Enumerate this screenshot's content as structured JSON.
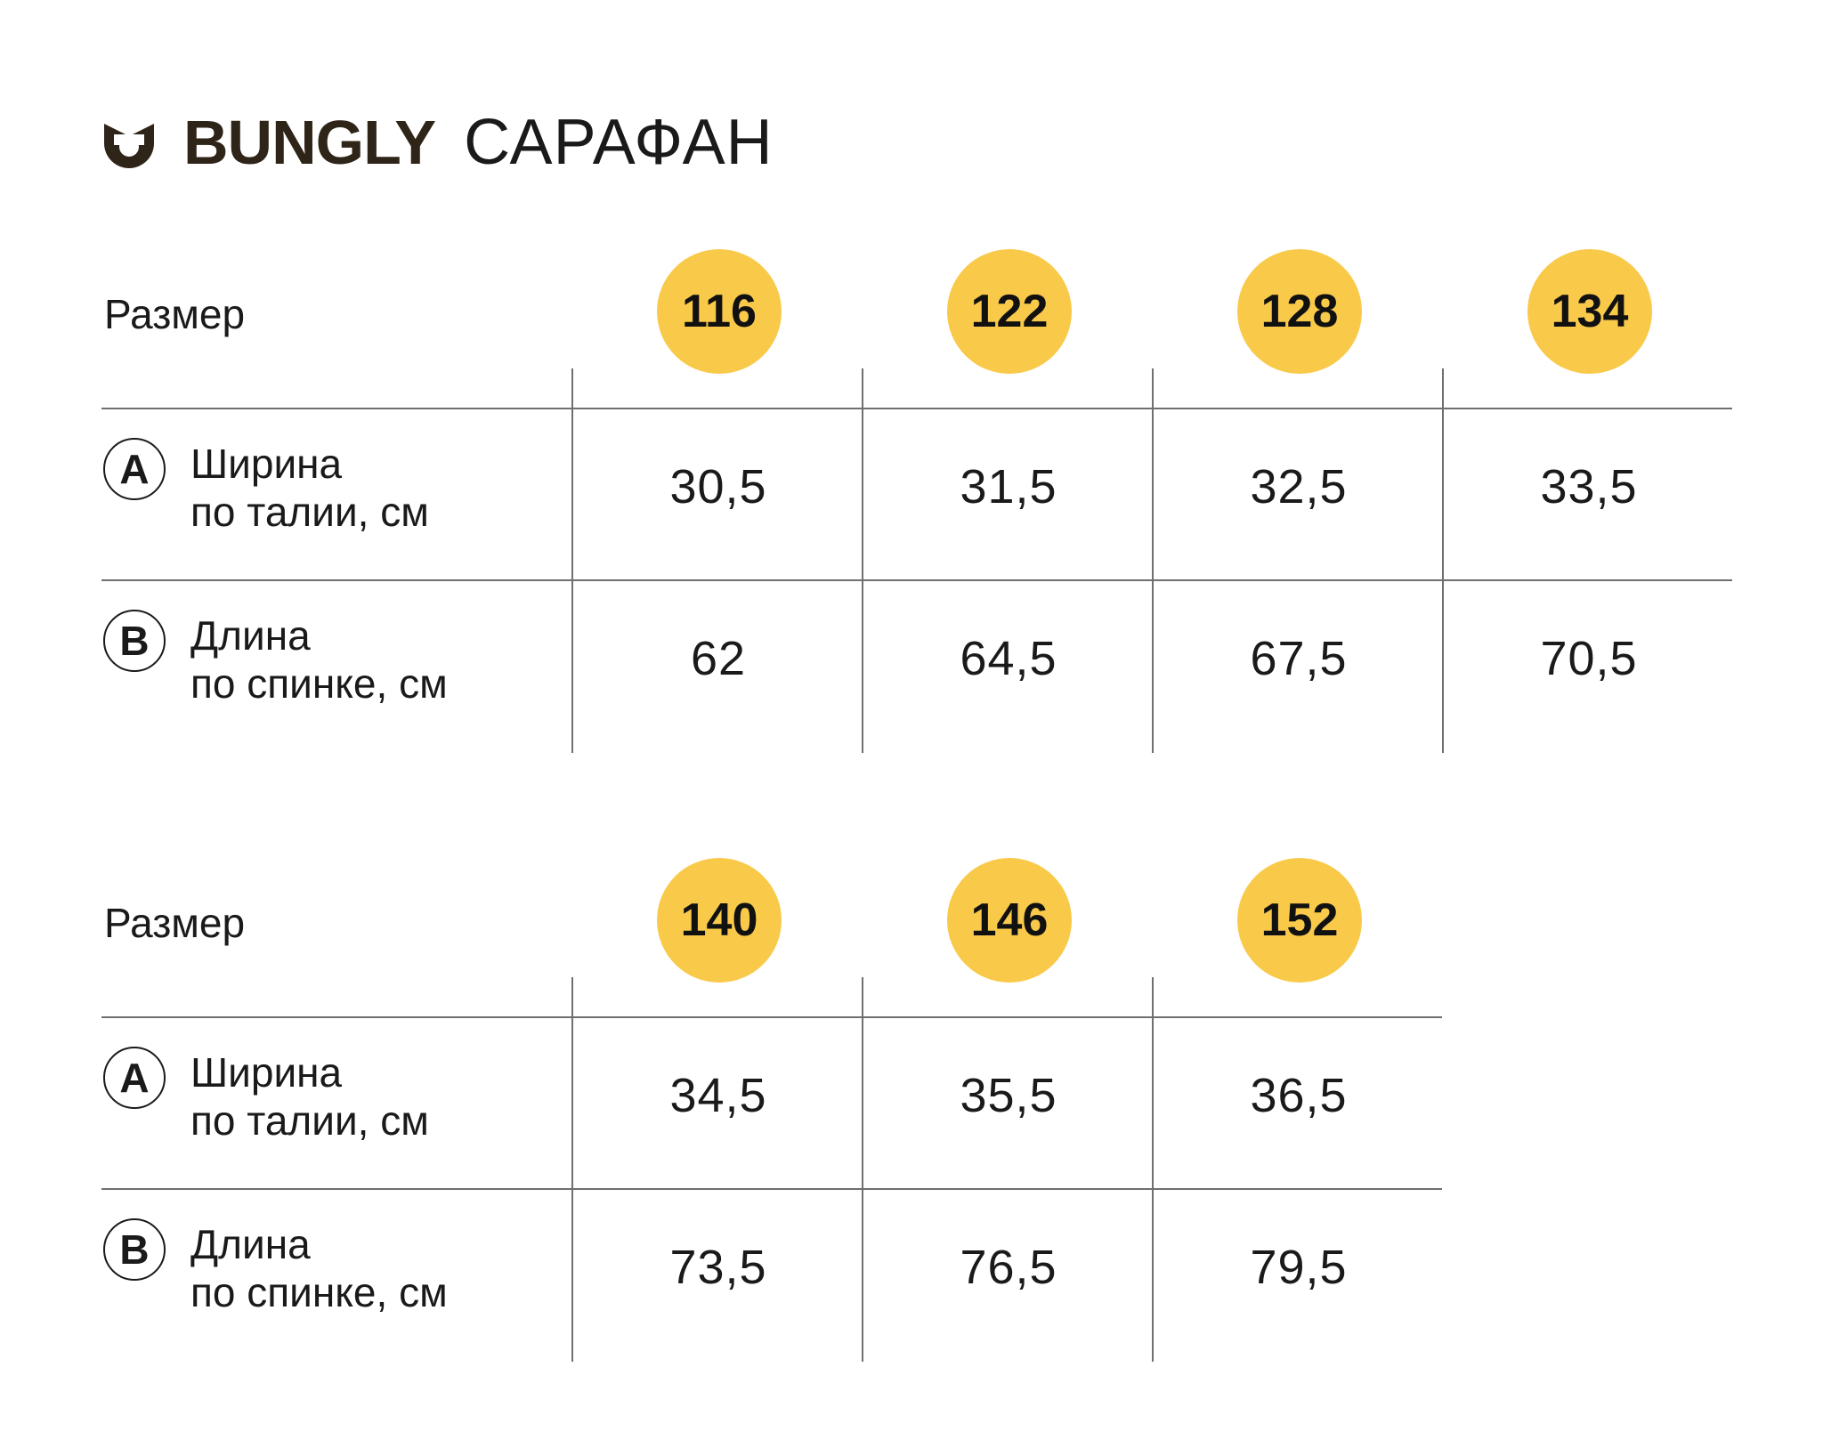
{
  "header": {
    "brand": "BUNGLY",
    "product": "САРАФАН",
    "logo_icon": "smile-cup-icon",
    "brand_color": "#2e2418"
  },
  "colors": {
    "badge": "#f9c94a",
    "rule": "#6f6f6f",
    "text": "#1a1a1a"
  },
  "tables": [
    {
      "size_label": "Размер",
      "sizes": [
        "116",
        "122",
        "128",
        "134"
      ],
      "rows": [
        {
          "marker": "A",
          "label_line1": "Ширина",
          "label_line2": "по талии, см",
          "values": [
            "30,5",
            "31,5",
            "32,5",
            "33,5"
          ]
        },
        {
          "marker": "B",
          "label_line1": "Длина",
          "label_line2": "по спинке, см",
          "values": [
            "62",
            "64,5",
            "67,5",
            "70,5"
          ]
        }
      ]
    },
    {
      "size_label": "Размер",
      "sizes": [
        "140",
        "146",
        "152"
      ],
      "rows": [
        {
          "marker": "A",
          "label_line1": "Ширина",
          "label_line2": "по талии, см",
          "values": [
            "34,5",
            "35,5",
            "36,5"
          ]
        },
        {
          "marker": "B",
          "label_line1": "Длина",
          "label_line2": "по спинке, см",
          "values": [
            "73,5",
            "76,5",
            "79,5"
          ]
        }
      ]
    }
  ]
}
